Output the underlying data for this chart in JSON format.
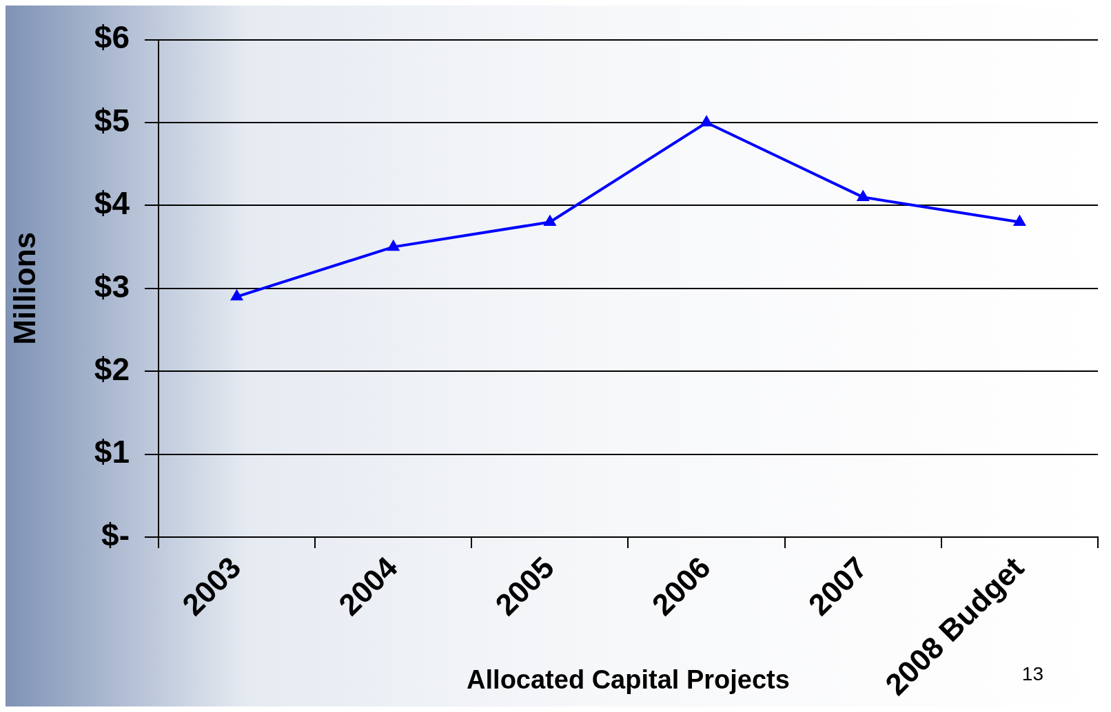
{
  "chart_data": {
    "type": "line",
    "xlabel": "Allocated Capital Projects",
    "ylabel": "Millions",
    "categories": [
      "2003",
      "2004",
      "2005",
      "2006",
      "2007",
      "2008 Budget"
    ],
    "series": [
      {
        "color": "#0000ff",
        "values": [
          2.9,
          3.5,
          3.8,
          5.0,
          4.1,
          3.8
        ]
      }
    ],
    "ylim": [
      0,
      6
    ],
    "yticks": [
      {
        "value": 0,
        "label": "$-"
      },
      {
        "value": 1,
        "label": "$1"
      },
      {
        "value": 2,
        "label": "$2"
      },
      {
        "value": 3,
        "label": "$3"
      },
      {
        "value": 4,
        "label": "$4"
      },
      {
        "value": 5,
        "label": "$5"
      },
      {
        "value": 6,
        "label": "$6"
      }
    ],
    "grid": "y",
    "legend": false,
    "marker": "triangle",
    "line_style": "solid",
    "annotations": [
      "13"
    ]
  }
}
